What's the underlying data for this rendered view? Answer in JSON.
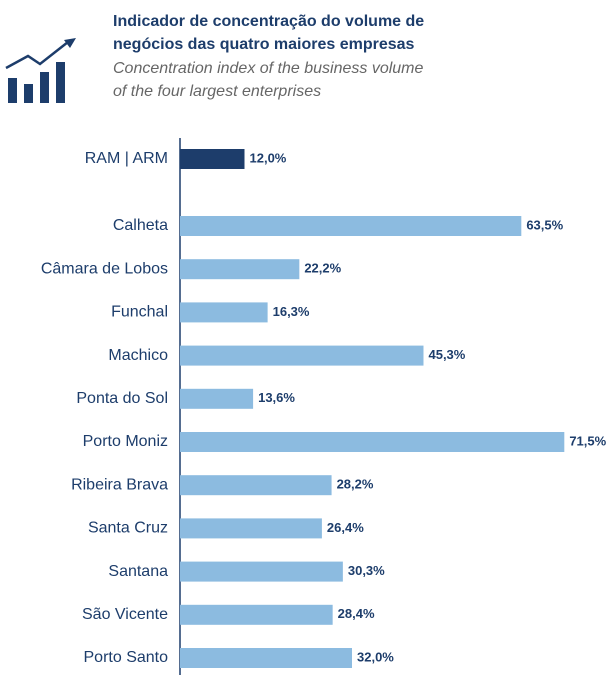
{
  "chart_data": {
    "type": "bar",
    "orientation": "horizontal",
    "title": [
      "Indicador de concentração do volume de",
      "negócios das quatro maiores empresas"
    ],
    "subtitle": [
      "Concentration index of the business volume",
      "of the four largest enterprises"
    ],
    "categories": [
      "RAM | ARM",
      "Calheta",
      "Câmara de Lobos",
      "Funchal",
      "Machico",
      "Ponta do Sol",
      "Porto Moniz",
      "Ribeira Brava",
      "Santa Cruz",
      "Santana",
      "São Vicente",
      "Porto Santo"
    ],
    "values": [
      12.0,
      63.5,
      22.2,
      16.3,
      45.3,
      13.6,
      71.5,
      28.2,
      26.4,
      30.3,
      28.4,
      32.0
    ],
    "value_labels": [
      "12,0%",
      "63,5%",
      "22,2%",
      "16,3%",
      "45,3%",
      "13,6%",
      "71,5%",
      "28,2%",
      "26,4%",
      "30,3%",
      "28,4%",
      "32,0%"
    ],
    "colors": [
      "#1d3d6b",
      "#8cbbe0",
      "#8cbbe0",
      "#8cbbe0",
      "#8cbbe0",
      "#8cbbe0",
      "#8cbbe0",
      "#8cbbe0",
      "#8cbbe0",
      "#8cbbe0",
      "#8cbbe0",
      "#8cbbe0"
    ],
    "xlim": [
      0,
      80
    ]
  }
}
